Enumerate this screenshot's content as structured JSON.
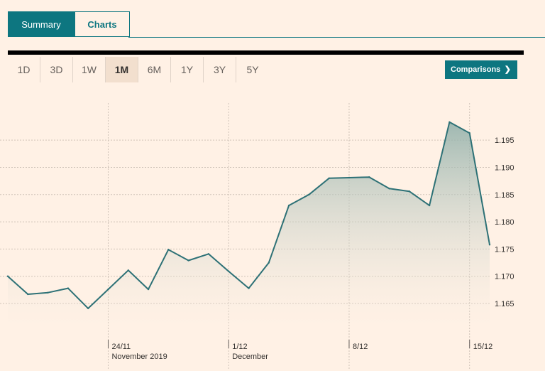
{
  "tabs": {
    "summary": "Summary",
    "charts": "Charts"
  },
  "ranges": [
    "1D",
    "3D",
    "1W",
    "1M",
    "6M",
    "1Y",
    "3Y",
    "5Y"
  ],
  "selected_range": "1M",
  "comparisons": {
    "label": "Comparisons",
    "chevron": "❯"
  },
  "colors": {
    "accent": "#0D7680",
    "line": "#2D7176",
    "background": "#FFF1E5"
  },
  "chart_data": {
    "type": "area",
    "x": [
      1,
      2,
      3,
      4,
      5,
      6,
      7,
      8,
      9,
      10,
      11,
      12,
      13,
      14,
      15,
      16,
      17,
      18,
      19,
      20,
      21,
      22,
      23,
      24,
      25
    ],
    "series": [
      {
        "values": [
          1.17,
          1.1667,
          1.167,
          1.1678,
          1.1641,
          1.1676,
          1.1711,
          1.1676,
          1.1749,
          1.1729,
          1.1741,
          1.1709,
          1.1678,
          1.1725,
          1.183,
          1.185,
          1.188,
          1.1881,
          1.1882,
          1.1861,
          1.1856,
          1.183,
          1.1983,
          1.1963,
          1.1758
        ]
      }
    ],
    "ylim": [
      1.1607,
      1.2018
    ],
    "yticks": [
      "1.165",
      "1.170",
      "1.175",
      "1.180",
      "1.185",
      "1.190",
      "1.195"
    ],
    "ytick_values": [
      1.165,
      1.17,
      1.175,
      1.18,
      1.185,
      1.19,
      1.195
    ],
    "xticks": [
      {
        "label": "24/11",
        "sublabel": "November 2019",
        "x": 6
      },
      {
        "label": "1/12",
        "sublabel": "December",
        "x": 12
      },
      {
        "label": "8/12",
        "sublabel": "",
        "x": 18
      },
      {
        "label": "15/12",
        "sublabel": "",
        "x": 24
      }
    ],
    "grid": true
  }
}
